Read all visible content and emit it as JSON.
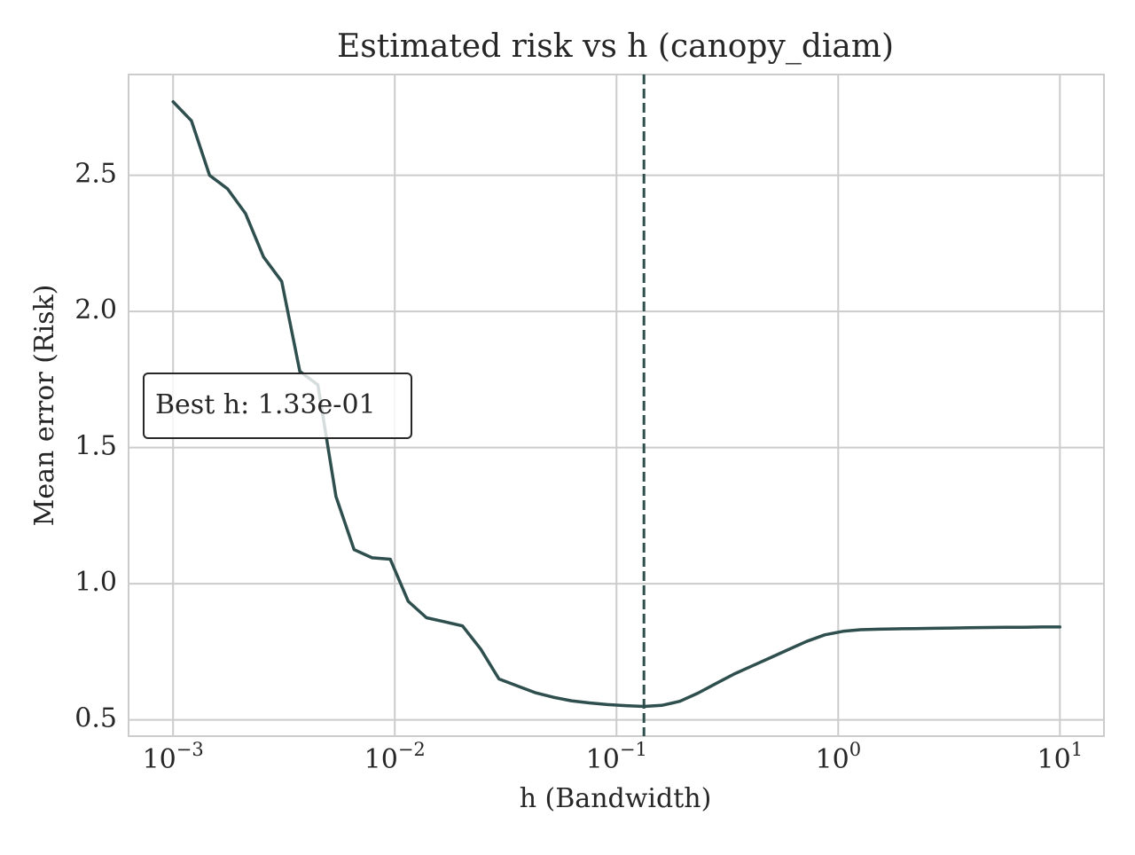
{
  "chart_data": {
    "type": "line",
    "title": "Estimated risk vs h (canopy_diam)",
    "xlabel": "h (Bandwidth)",
    "ylabel": "Mean error (Risk)",
    "xscale": "log",
    "xlim": [
      0.00063,
      15.8
    ],
    "ylim": [
      0.44,
      2.87
    ],
    "x_ticks": [
      {
        "value": 0.001,
        "base": "10",
        "exp": "−3"
      },
      {
        "value": 0.01,
        "base": "10",
        "exp": "−2"
      },
      {
        "value": 0.1,
        "base": "10",
        "exp": "−1"
      },
      {
        "value": 1,
        "base": "10",
        "exp": "0"
      },
      {
        "value": 10,
        "base": "10",
        "exp": "1"
      }
    ],
    "y_ticks": [
      {
        "value": 0.5,
        "label": "0.5"
      },
      {
        "value": 1.0,
        "label": "1.0"
      },
      {
        "value": 1.5,
        "label": "1.5"
      },
      {
        "value": 2.0,
        "label": "2.0"
      },
      {
        "value": 2.5,
        "label": "2.5"
      }
    ],
    "grid": true,
    "series": [
      {
        "color": "#2f4f4f",
        "x": [
          0.001,
          0.00121,
          0.00146,
          0.00176,
          0.00212,
          0.00256,
          0.00309,
          0.00373,
          0.0045,
          0.00543,
          0.00655,
          0.0079,
          0.00954,
          0.0115,
          0.0139,
          0.0168,
          0.0202,
          0.0244,
          0.0295,
          0.0356,
          0.0429,
          0.0518,
          0.0625,
          0.0754,
          0.091,
          0.11,
          0.133,
          0.16,
          0.193,
          0.233,
          0.281,
          0.339,
          0.409,
          0.494,
          0.596,
          0.72,
          0.869,
          1.05,
          1.26,
          1.53,
          1.84,
          2.22,
          2.68,
          3.24,
          3.91,
          4.71,
          5.69,
          6.87,
          8.29,
          10.0
        ],
        "y": [
          2.77,
          2.7,
          2.5,
          2.45,
          2.36,
          2.2,
          2.11,
          1.78,
          1.73,
          1.32,
          1.125,
          1.095,
          1.09,
          0.935,
          0.875,
          0.86,
          0.845,
          0.76,
          0.65,
          0.625,
          0.6,
          0.583,
          0.57,
          0.562,
          0.556,
          0.552,
          0.549,
          0.553,
          0.568,
          0.598,
          0.633,
          0.668,
          0.698,
          0.728,
          0.758,
          0.788,
          0.812,
          0.825,
          0.831,
          0.833,
          0.834,
          0.835,
          0.836,
          0.837,
          0.838,
          0.839,
          0.84,
          0.84,
          0.841,
          0.841
        ]
      }
    ],
    "best_h_line": {
      "x": 0.133,
      "style": "dashed",
      "color": "#2f4f4f"
    },
    "annotation": {
      "text": "Best h: 1.33e-01",
      "placement": "left-middle"
    }
  }
}
